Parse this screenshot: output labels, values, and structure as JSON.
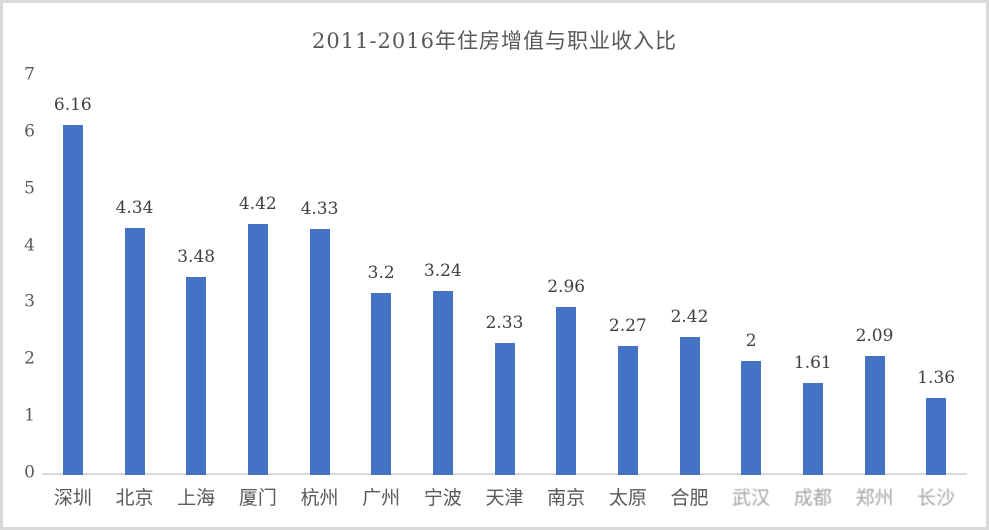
{
  "frame": {
    "background_color": "#ffffff",
    "border_color": "#d9d9d9"
  },
  "chart_data": {
    "type": "bar",
    "title": "2011-2016年住房增值与职业收入比",
    "xlabel": "",
    "ylabel": "",
    "categories": [
      "深圳",
      "北京",
      "上海",
      "厦门",
      "杭州",
      "广州",
      "宁波",
      "天津",
      "南京",
      "太原",
      "合肥",
      "武汉",
      "成都",
      "郑州",
      "长沙"
    ],
    "values": [
      6.16,
      4.34,
      3.48,
      4.42,
      4.33,
      3.2,
      3.24,
      2.33,
      2.96,
      2.27,
      2.42,
      2,
      1.61,
      2.09,
      1.36
    ],
    "data_labels": [
      "6.16",
      "4.34",
      "3.48",
      "4.42",
      "4.33",
      "3.2",
      "3.24",
      "2.33",
      "2.96",
      "2.27",
      "2.42",
      "2",
      "1.61",
      "2.09",
      "1.36"
    ],
    "faded_category_indices": [
      11,
      12,
      13,
      14
    ],
    "y_ticks": [
      0,
      1,
      2,
      3,
      4,
      5,
      6,
      7
    ],
    "ylim": [
      0,
      7
    ],
    "grid": false,
    "legend": false,
    "bar_color": "#4472c4",
    "axis_line_color": "#d9d9d9",
    "title_color": "#595959",
    "tick_label_color": "#595959",
    "data_label_color": "#404040"
  }
}
